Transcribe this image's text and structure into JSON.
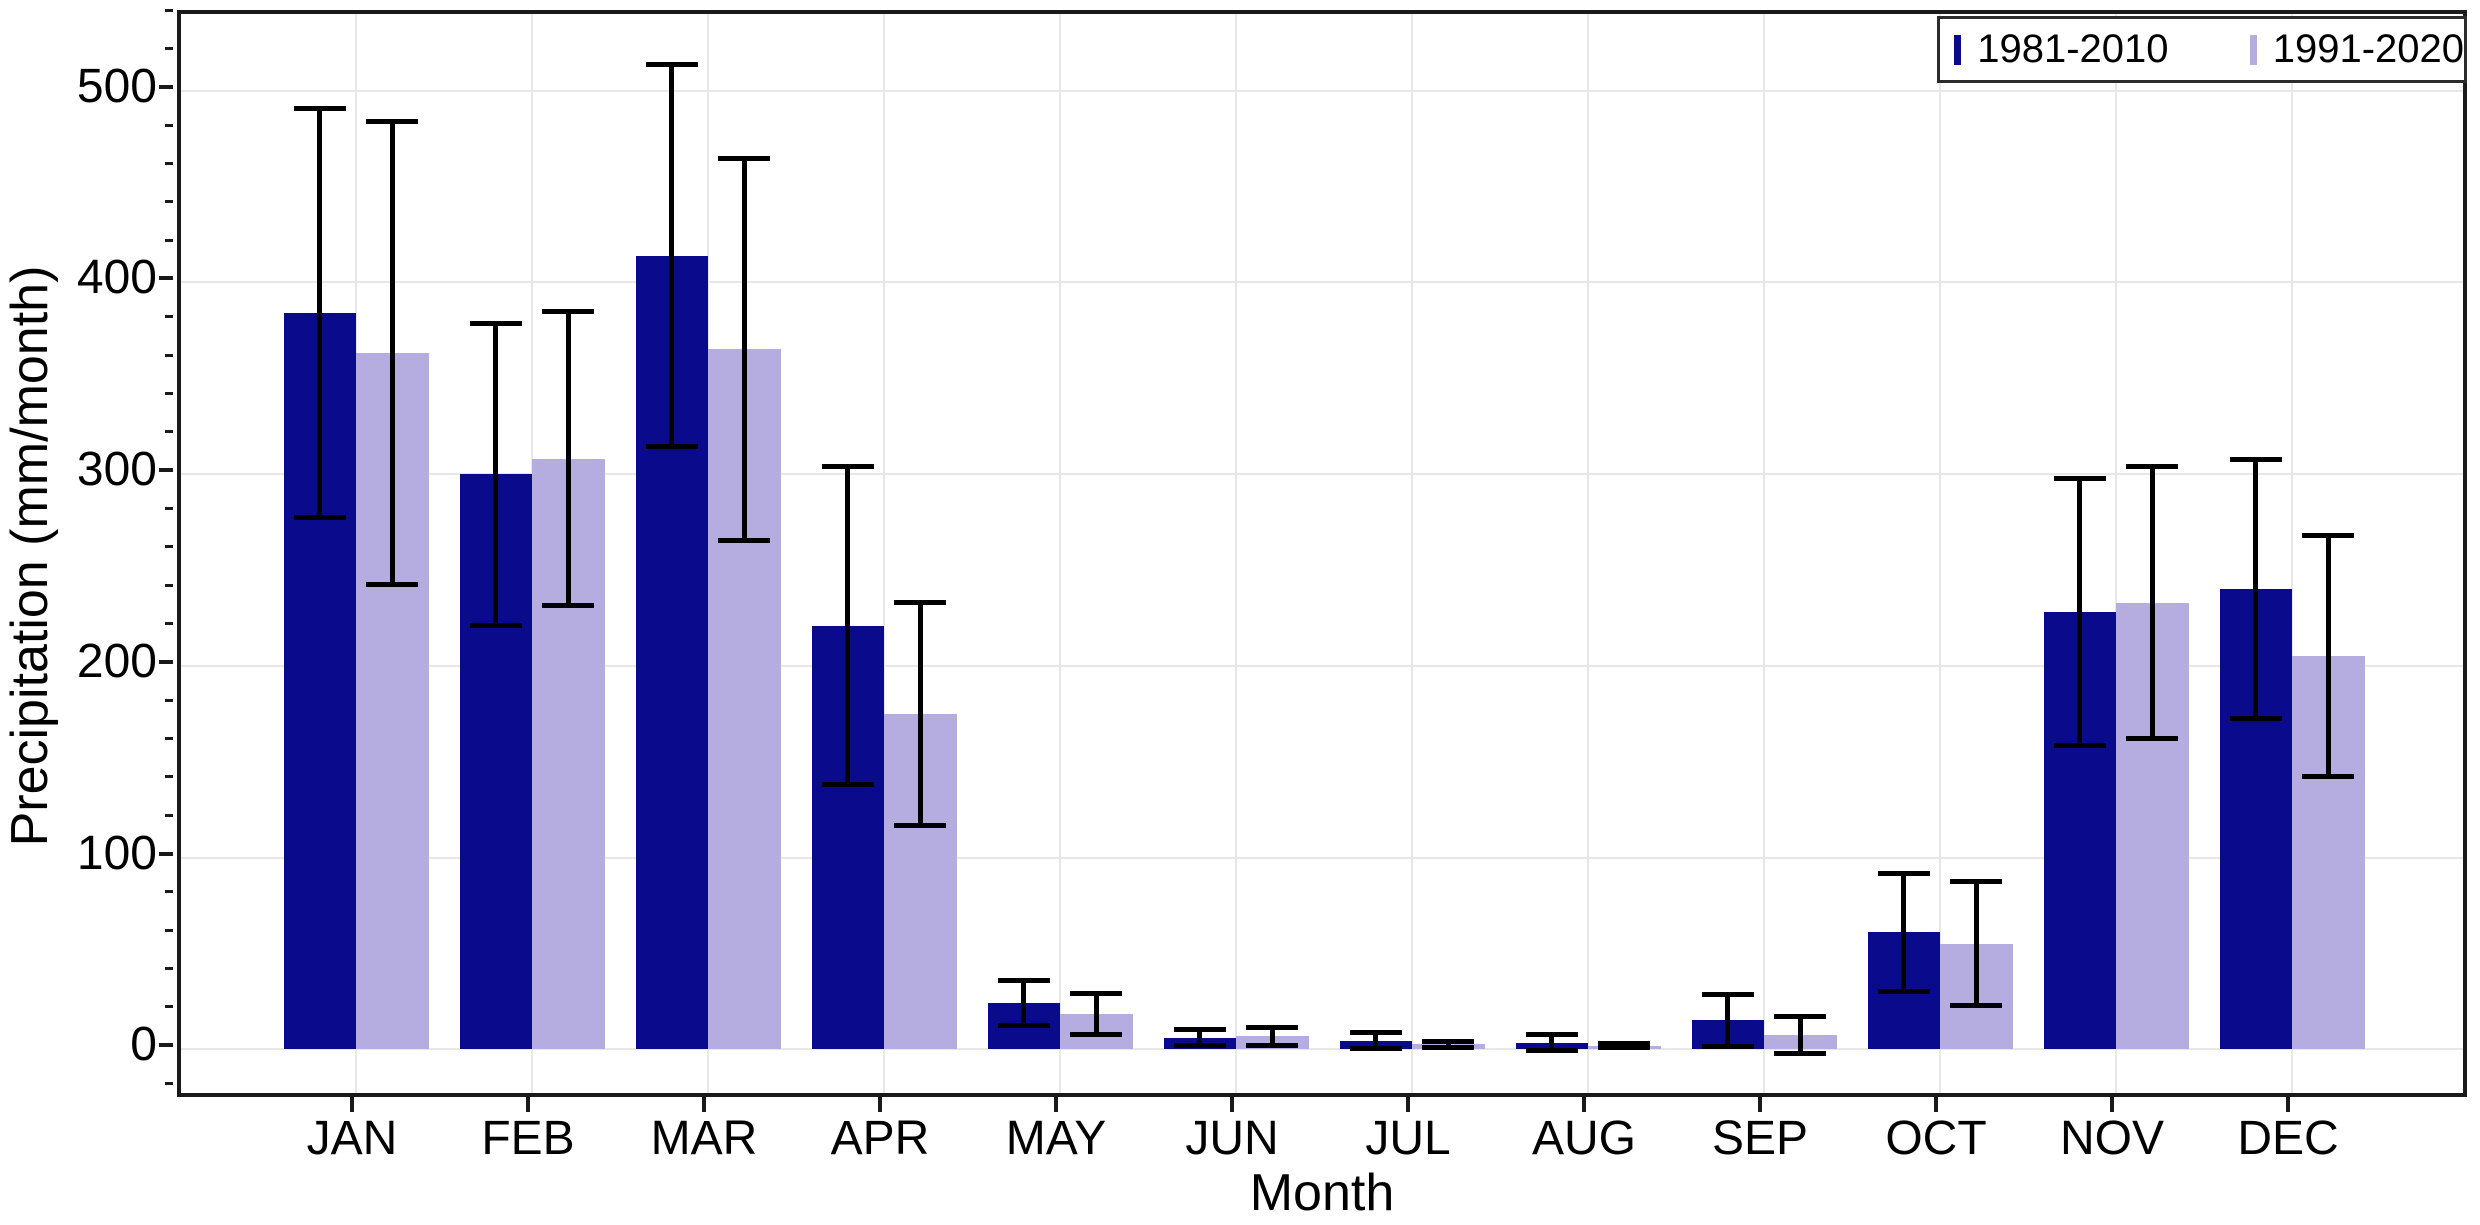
{
  "chart_data": {
    "type": "bar",
    "title": "",
    "xlabel": "Month",
    "ylabel": "Precipitation (mm/month)",
    "categories": [
      "JAN",
      "FEB",
      "MAR",
      "APR",
      "MAY",
      "JUN",
      "JUL",
      "AUG",
      "SEP",
      "OCT",
      "NOV",
      "DEC"
    ],
    "series": [
      {
        "name": "1981-2010",
        "color": "#0a0a8c",
        "values": [
          384,
          300,
          414,
          221,
          24,
          6,
          4.5,
          3.3,
          15,
          61,
          228,
          240
        ],
        "errors": [
          107,
          79,
          100,
          83,
          12,
          4.5,
          4.3,
          4.4,
          14,
          31,
          70,
          68
        ]
      },
      {
        "name": "1991-2020",
        "color": "#b5ace0",
        "values": [
          363,
          308,
          365,
          175,
          18.5,
          6.7,
          2.5,
          1.8,
          7.5,
          55,
          233,
          205
        ],
        "errors": [
          121,
          77,
          100,
          58.5,
          11,
          4.8,
          1.7,
          1.3,
          10,
          32.5,
          71,
          63
        ]
      }
    ],
    "error_bar_color": "#000000",
    "ylim": [
      -27,
      540
    ],
    "yticks": [
      0,
      100,
      200,
      300,
      400,
      500
    ],
    "ytick_labels": [
      "0",
      "100",
      "200",
      "300",
      "400",
      "500"
    ],
    "y_minor_tick_step": 20,
    "grid": true,
    "legend_position": "upper right",
    "background": "#ffffff"
  }
}
